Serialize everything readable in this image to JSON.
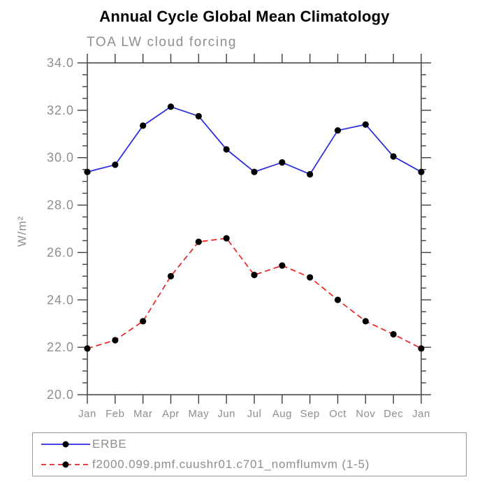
{
  "title": "Annual Cycle Global Mean Climatology",
  "subtitle": "TOA LW cloud forcing",
  "ylabel": "W/m²",
  "colors": {
    "axis": "#3f3f3f",
    "label_gray": "#8e8e8e",
    "marker": "#000000",
    "legend_border": "#999999",
    "series_blue": "#2626e0",
    "series_red": "#ee2020"
  },
  "chart_data": {
    "type": "line",
    "title": "Annual Cycle Global Mean Climatology",
    "subtitle": "TOA LW cloud forcing",
    "xlabel": "",
    "ylabel": "W/m²",
    "categories": [
      "Jan",
      "Feb",
      "Mar",
      "Apr",
      "May",
      "Jun",
      "Jul",
      "Aug",
      "Sep",
      "Oct",
      "Nov",
      "Dec",
      "Jan"
    ],
    "series": [
      {
        "name": "ERBE",
        "color": "#2626e0",
        "style": "solid",
        "marker": "circle",
        "marker_color": "#000000",
        "values": [
          29.4,
          29.7,
          31.35,
          32.15,
          31.75,
          30.35,
          29.4,
          29.8,
          29.3,
          31.15,
          31.4,
          30.05,
          29.4
        ]
      },
      {
        "name": "f2000.099.pmf.cuushr01.c701_nomflumvm (1-5)",
        "color": "#ee2020",
        "style": "dashed",
        "marker": "circle",
        "marker_color": "#000000",
        "values": [
          21.95,
          22.3,
          23.1,
          25.0,
          26.45,
          26.6,
          25.05,
          25.45,
          24.95,
          24.0,
          23.1,
          22.55,
          21.95
        ]
      }
    ],
    "ylim": [
      20.0,
      34.0
    ],
    "ytick_step": 2.0,
    "yminor_step": 0.5,
    "ytick_labels": [
      "20.0",
      "22.0",
      "24.0",
      "26.0",
      "28.0",
      "30.0",
      "32.0",
      "34.0"
    ],
    "grid": false,
    "tick_direction": "out",
    "legend_position": "bottom"
  }
}
